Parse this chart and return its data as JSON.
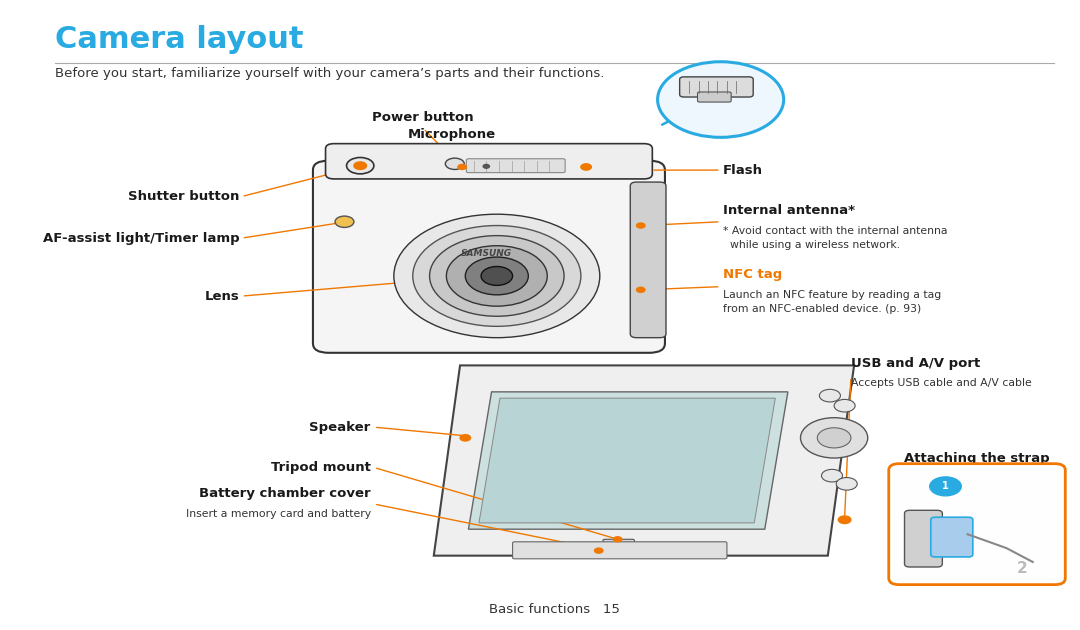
{
  "title": "Camera layout",
  "subtitle": "Before you start, familiarize yourself with your camera’s parts and their functions.",
  "footer": "Basic functions   15",
  "title_color": "#29abe2",
  "title_fontsize": 22,
  "subtitle_fontsize": 9.5,
  "footer_fontsize": 9.5,
  "orange_color": "#f07800",
  "black_color": "#1a1a1a",
  "blue_color": "#29abe2",
  "bg_color": "#ffffff",
  "line_color": "#aaaaaa"
}
